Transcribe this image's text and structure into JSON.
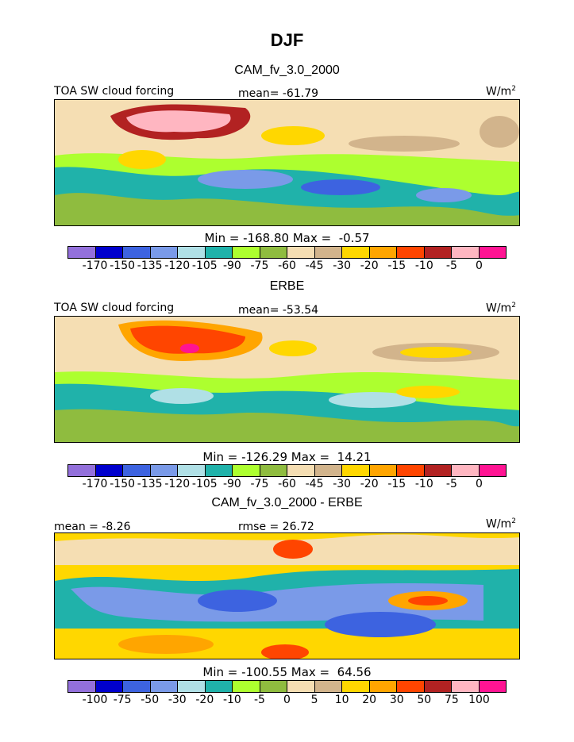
{
  "title": "DJF",
  "colors": [
    "#9370db",
    "#0000cd",
    "#3d63e0",
    "#7a9ae8",
    "#b0e0e6",
    "#20b2aa",
    "#adff2f",
    "#8fbc3f",
    "#f5deb3",
    "#d2b48c",
    "#ffd700",
    "#ffa500",
    "#ff4500",
    "#b22222",
    "#ffb6c1",
    "#ff1493"
  ],
  "panels": [
    {
      "id": "model",
      "subtitle": "CAM_fv_3.0_2000",
      "left_label": "TOA SW cloud forcing",
      "center_label": "mean=  -61.79",
      "units_base": "W/m",
      "units_exp": "2",
      "minmax": "Min = -168.80 Max =  -0.57",
      "ticks": [
        "-170",
        "-150",
        "-135",
        "-120",
        "-105",
        "-90",
        "-75",
        "-60",
        "-45",
        "-30",
        "-20",
        "-15",
        "-10",
        "-5",
        "0"
      ]
    },
    {
      "id": "obs",
      "subtitle": "ERBE",
      "left_label": "TOA SW cloud forcing",
      "center_label": "mean=  -53.54",
      "units_base": "W/m",
      "units_exp": "2",
      "minmax": "Min = -126.29 Max =  14.21",
      "ticks": [
        "-170",
        "-150",
        "-135",
        "-120",
        "-105",
        "-90",
        "-75",
        "-60",
        "-45",
        "-30",
        "-20",
        "-15",
        "-10",
        "-5",
        "0"
      ]
    },
    {
      "id": "diff",
      "subtitle": "CAM_fv_3.0_2000 - ERBE",
      "left_label": "mean =  -8.26",
      "center_label": "rmse =  26.72",
      "units_base": "W/m",
      "units_exp": "2",
      "minmax": "Min = -100.55 Max =  64.56",
      "ticks": [
        "-100",
        "-75",
        "-50",
        "-30",
        "-20",
        "-10",
        "-5",
        "0",
        "5",
        "10",
        "20",
        "30",
        "50",
        "75",
        "100"
      ]
    }
  ]
}
